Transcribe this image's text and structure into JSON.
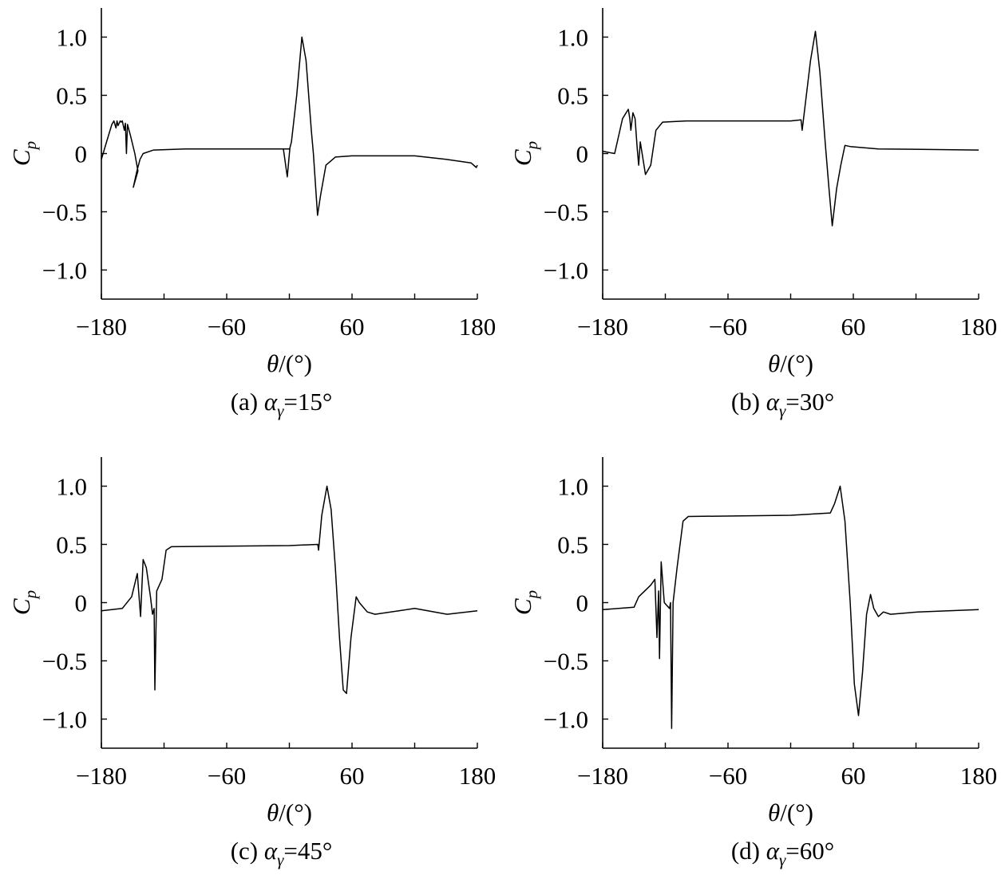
{
  "chart_data": [
    {
      "type": "line",
      "x": [
        -180,
        -175,
        -170,
        -168,
        -166,
        -165,
        -164,
        -162,
        -161,
        -160,
        -158,
        -157,
        -156,
        -155,
        -152,
        -148,
        -145,
        -149.4,
        -146,
        -143,
        -140,
        -130,
        -100,
        0,
        -5.7,
        -2,
        0.5,
        2,
        7,
        12,
        16,
        21,
        23,
        27,
        30,
        35,
        44,
        60,
        120,
        150,
        174,
        179,
        180
      ],
      "values": [
        -0.05,
        0.1,
        0.25,
        0.28,
        0.22,
        0.28,
        0.24,
        0.28,
        0.27,
        0.28,
        0.2,
        0.26,
        0.0,
        0.25,
        0.15,
        0.0,
        -0.15,
        -0.29,
        -0.15,
        -0.05,
        0.0,
        0.03,
        0.04,
        0.04,
        0.04,
        -0.2,
        0.05,
        0.1,
        0.5,
        1.0,
        0.8,
        0.2,
        0.0,
        -0.53,
        -0.35,
        -0.1,
        -0.03,
        -0.02,
        -0.02,
        -0.05,
        -0.08,
        -0.12,
        -0.1
      ],
      "xlim": [
        -180,
        180
      ],
      "ylim": [
        -1.25,
        1.25
      ],
      "xticks": [
        {
          "value": -180,
          "label": "−180"
        },
        {
          "value": -60,
          "label": "−60"
        },
        60,
        180
      ],
      "xticks_minor": [
        -120,
        0,
        120
      ],
      "yticks": [
        {
          "value": -1,
          "label": "−1.0"
        },
        {
          "value": -0.5,
          "label": "−0.5"
        },
        0,
        0.5,
        {
          "value": 1,
          "label": "1.0"
        }
      ],
      "xlabel": [
        "θ",
        "/(°)"
      ],
      "ylabel": [
        "C",
        "p"
      ],
      "caption": [
        "(a) ",
        "α",
        "γ",
        "=15°"
      ],
      "color": "#000000"
    },
    {
      "type": "line",
      "x": [
        -180,
        -168.5,
        -161,
        -155.5,
        -154,
        -153,
        -151,
        -149,
        -147,
        -145.5,
        -144,
        -139,
        -134,
        -129,
        -122.6,
        -100,
        0,
        9.9,
        11,
        13.7,
        19,
        23.7,
        28,
        33,
        36.7,
        39.8,
        44,
        48,
        52,
        57,
        84,
        180
      ],
      "values": [
        0.02,
        0.0,
        0.3,
        0.38,
        0.3,
        0.2,
        0.35,
        0.3,
        0.05,
        -0.1,
        0.1,
        -0.18,
        -0.1,
        0.2,
        0.27,
        0.28,
        0.28,
        0.29,
        0.2,
        0.4,
        0.8,
        1.05,
        0.7,
        0.1,
        -0.3,
        -0.62,
        -0.3,
        -0.1,
        0.07,
        0.06,
        0.04,
        0.03
      ],
      "xlim": [
        -180,
        180
      ],
      "ylim": [
        -1.25,
        1.25
      ],
      "xticks": [
        {
          "value": -180,
          "label": "−180"
        },
        {
          "value": -60,
          "label": "−60"
        },
        60,
        180
      ],
      "xticks_minor": [
        -120,
        0,
        120
      ],
      "yticks": [
        {
          "value": -1,
          "label": "−1.0"
        },
        {
          "value": -0.5,
          "label": "−0.5"
        },
        0,
        0.5,
        {
          "value": 1,
          "label": "1.0"
        }
      ],
      "xlabel": [
        "θ",
        "/(°)"
      ],
      "ylabel": [
        "C",
        "p"
      ],
      "caption": [
        "(b) ",
        "α",
        "γ",
        "=30°"
      ],
      "color": "#000000"
    },
    {
      "type": "line",
      "x": [
        -180,
        -160,
        -151,
        -145.6,
        -142.5,
        -140,
        -137,
        -133,
        -131,
        -129.5,
        -128.8,
        -127,
        -122,
        -118,
        -113,
        0,
        27.2,
        28,
        31,
        36,
        40,
        44,
        48,
        51.6,
        54.7,
        59,
        64,
        67,
        74.6,
        82,
        120,
        151,
        180
      ],
      "values": [
        -0.07,
        -0.05,
        0.05,
        0.25,
        -0.12,
        0.37,
        0.3,
        0.05,
        -0.1,
        -0.05,
        -0.75,
        0.1,
        0.2,
        0.45,
        0.48,
        0.49,
        0.5,
        0.45,
        0.75,
        1.0,
        0.8,
        0.3,
        -0.3,
        -0.75,
        -0.78,
        -0.3,
        0.05,
        0.0,
        -0.08,
        -0.1,
        -0.05,
        -0.1,
        -0.07
      ],
      "xlim": [
        -180,
        180
      ],
      "ylim": [
        -1.25,
        1.25
      ],
      "xticks": [
        {
          "value": -180,
          "label": "−180"
        },
        {
          "value": -60,
          "label": "−60"
        },
        60,
        180
      ],
      "xticks_minor": [
        -120,
        0,
        120
      ],
      "yticks": [
        {
          "value": -1,
          "label": "−1.0"
        },
        {
          "value": -0.5,
          "label": "−0.5"
        },
        0,
        0.5,
        {
          "value": 1,
          "label": "1.0"
        }
      ],
      "xlabel": [
        "θ",
        "/(°)"
      ],
      "ylabel": [
        "C",
        "p"
      ],
      "caption": [
        "(c) ",
        "α",
        "γ",
        "=45°"
      ],
      "color": "#000000"
    },
    {
      "type": "line",
      "x": [
        -180,
        -150,
        -145.5,
        -134,
        -130,
        -128,
        -126.4,
        -125.6,
        -124,
        -121,
        -116,
        -115,
        -114,
        -112.6,
        -108.8,
        -103,
        -98,
        0,
        38,
        42,
        47.4,
        52,
        57,
        61,
        65,
        68.8,
        72.7,
        76.5,
        79.6,
        84,
        88.8,
        95.7,
        122,
        180
      ],
      "values": [
        -0.06,
        -0.04,
        0.05,
        0.15,
        0.2,
        -0.3,
        0.1,
        -0.48,
        0.35,
        0.0,
        -0.05,
        0.0,
        -1.08,
        0.0,
        0.3,
        0.7,
        0.74,
        0.75,
        0.77,
        0.85,
        1.0,
        0.7,
        0.0,
        -0.7,
        -0.97,
        -0.6,
        -0.1,
        0.07,
        -0.05,
        -0.12,
        -0.08,
        -0.1,
        -0.08,
        -0.06
      ],
      "xlim": [
        -180,
        180
      ],
      "ylim": [
        -1.25,
        1.25
      ],
      "xticks": [
        {
          "value": -180,
          "label": "−180"
        },
        {
          "value": -60,
          "label": "−60"
        },
        60,
        180
      ],
      "xticks_minor": [
        -120,
        0,
        120
      ],
      "yticks": [
        {
          "value": -1,
          "label": "−1.0"
        },
        {
          "value": -0.5,
          "label": "−0.5"
        },
        0,
        0.5,
        {
          "value": 1,
          "label": "1.0"
        }
      ],
      "xlabel": [
        "θ",
        "/(°)"
      ],
      "ylabel": [
        "C",
        "p"
      ],
      "caption": [
        "(d) ",
        "α",
        "γ",
        "=60°"
      ],
      "color": "#000000"
    }
  ]
}
